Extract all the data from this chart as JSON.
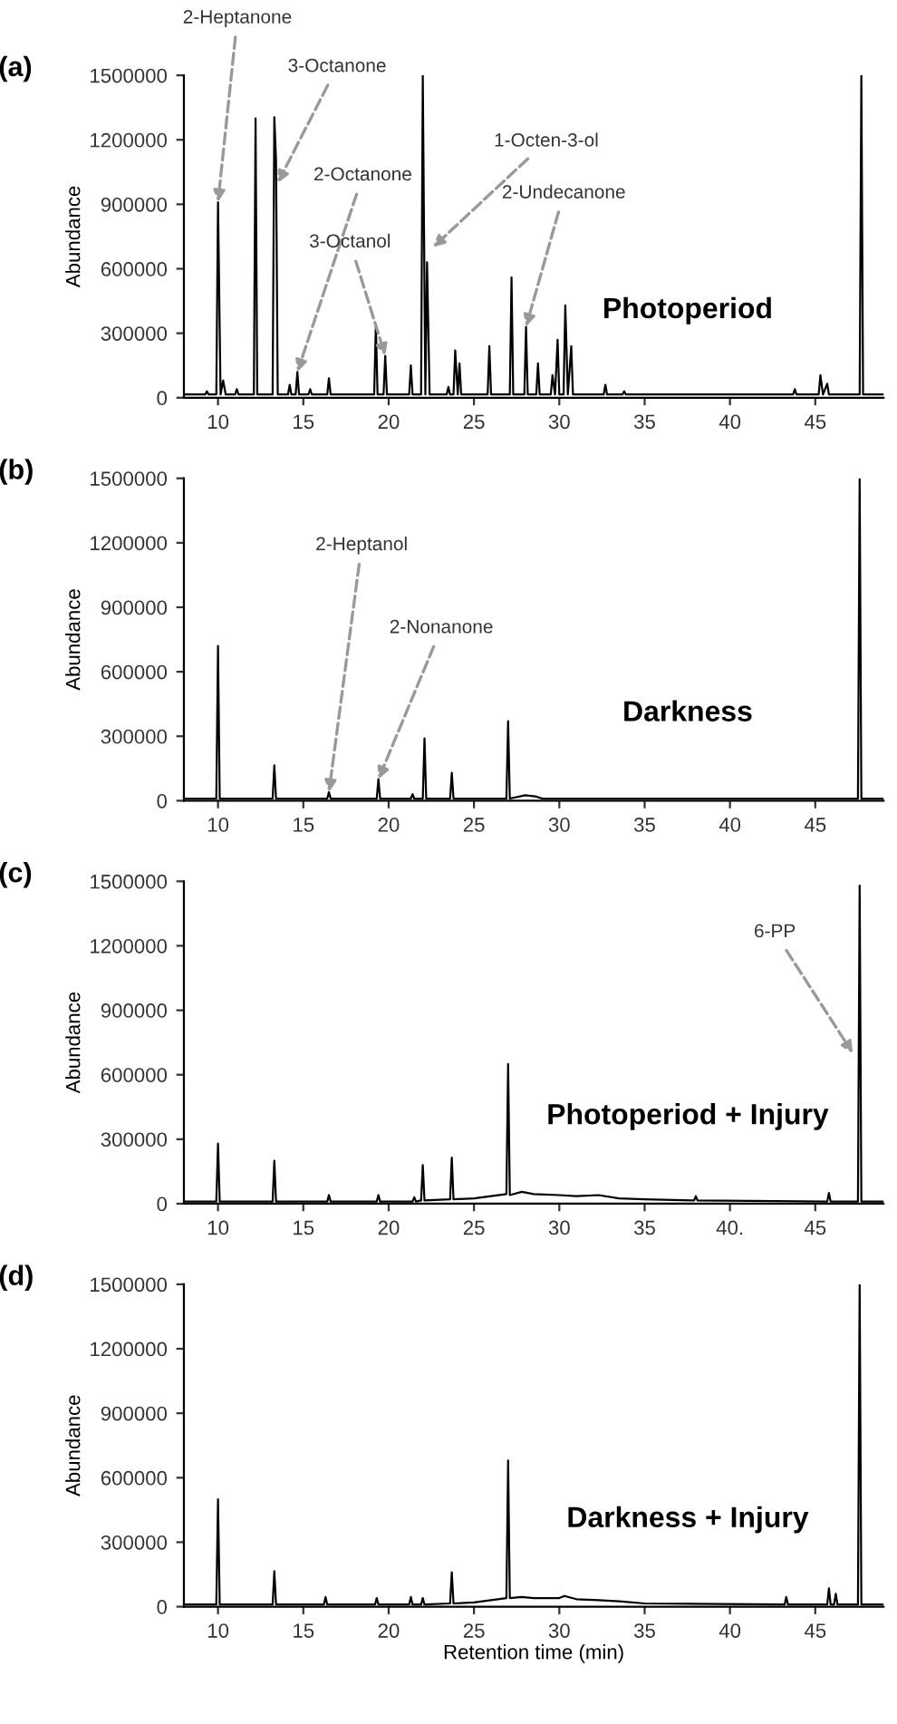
{
  "chart_data": [
    {
      "type": "line",
      "title": "(a)",
      "ylabel": "Abundance",
      "xlim": [
        8,
        49
      ],
      "xticks": [
        10,
        15,
        20,
        25,
        30,
        35,
        40,
        45
      ],
      "ylim": [
        0,
        1500000
      ],
      "yticks": [
        0,
        300000,
        600000,
        900000,
        1200000,
        1500000
      ],
      "grid": false,
      "marker": "none",
      "line_style": "solid",
      "series": [
        {
          "color": "#000000",
          "x": [
            8.1,
            9.25,
            9.35,
            9.45,
            9.9,
            10.0,
            10.15,
            10.3,
            10.45,
            11.0,
            11.1,
            11.2,
            12.1,
            12.2,
            12.3,
            13.2,
            13.3,
            13.4,
            13.5,
            14.1,
            14.2,
            14.3,
            14.55,
            14.65,
            14.75,
            15.3,
            15.4,
            15.5,
            16.4,
            16.5,
            16.6,
            19.15,
            19.25,
            19.35,
            19.7,
            19.8,
            19.9,
            21.2,
            21.3,
            21.4,
            21.9,
            22.0,
            22.15,
            22.25,
            22.4,
            23.4,
            23.5,
            23.6,
            23.8,
            23.9,
            24.05,
            24.15,
            24.25,
            25.8,
            25.9,
            26.0,
            27.1,
            27.2,
            27.3,
            27.95,
            28.05,
            28.15,
            28.65,
            28.75,
            28.85,
            29.5,
            29.6,
            29.75,
            29.9,
            30.0,
            30.25,
            30.35,
            30.5,
            30.7,
            30.8,
            32.6,
            32.7,
            32.8,
            33.7,
            33.8,
            33.9,
            43.7,
            43.8,
            43.9,
            45.2,
            45.3,
            45.45,
            45.7,
            45.8,
            47.6,
            47.7,
            47.8,
            49
          ],
          "values": [
            15000,
            15000,
            30000,
            15000,
            15000,
            910000,
            15000,
            80000,
            15000,
            15000,
            40000,
            15000,
            15000,
            1300000,
            15000,
            15000,
            1305000,
            1105000,
            15000,
            15000,
            60000,
            15000,
            15000,
            120000,
            15000,
            15000,
            40000,
            15000,
            15000,
            90000,
            15000,
            15000,
            340000,
            15000,
            15000,
            195000,
            15000,
            15000,
            150000,
            15000,
            15000,
            1500000,
            15000,
            630000,
            15000,
            15000,
            50000,
            15000,
            15000,
            220000,
            15000,
            160000,
            15000,
            15000,
            240000,
            15000,
            15000,
            560000,
            15000,
            15000,
            330000,
            15000,
            15000,
            160000,
            15000,
            15000,
            105000,
            15000,
            270000,
            15000,
            15000,
            430000,
            15000,
            240000,
            15000,
            15000,
            60000,
            15000,
            15000,
            30000,
            15000,
            15000,
            40000,
            15000,
            15000,
            105000,
            15000,
            65000,
            15000,
            15000,
            1500000,
            15000,
            15000
          ]
        }
      ],
      "annotations": [
        {
          "text": "2-Heptanone",
          "x": 10.0,
          "y": 910000
        },
        {
          "text": "3-Octanone",
          "x": 13.5,
          "y": 1000000
        },
        {
          "text": "2-Octanone",
          "x": 14.65,
          "y": 120000
        },
        {
          "text": "3-Octanol",
          "x": 19.8,
          "y": 195000
        },
        {
          "text": "1-Octen-3-ol",
          "x": 22.6,
          "y": 700000
        },
        {
          "text": "2-Undecanone",
          "x": 28.05,
          "y": 330000
        },
        "Photoperiod"
      ]
    },
    {
      "type": "line",
      "title": "(b)",
      "ylabel": "Abundance",
      "xlim": [
        8,
        49
      ],
      "xticks": [
        10,
        15,
        20,
        25,
        30,
        35,
        40,
        45
      ],
      "ylim": [
        0,
        1500000
      ],
      "yticks": [
        0,
        300000,
        600000,
        900000,
        1200000,
        1500000
      ],
      "grid": false,
      "marker": "none",
      "line_style": "solid",
      "series": [
        {
          "color": "#000000",
          "x": [
            8.1,
            9.9,
            10.0,
            10.1,
            13.2,
            13.3,
            13.4,
            16.4,
            16.5,
            16.6,
            19.3,
            19.4,
            19.5,
            21.3,
            21.4,
            21.5,
            22.0,
            22.1,
            22.2,
            23.6,
            23.7,
            23.8,
            26.9,
            27.0,
            27.1,
            28.0,
            28.6,
            29.0,
            47.5,
            47.6,
            47.7,
            49
          ],
          "values": [
            10000,
            10000,
            720000,
            10000,
            10000,
            165000,
            10000,
            10000,
            40000,
            10000,
            10000,
            100000,
            10000,
            10000,
            30000,
            10000,
            10000,
            290000,
            10000,
            10000,
            130000,
            10000,
            10000,
            370000,
            10000,
            25000,
            20000,
            10000,
            10000,
            1500000,
            10000,
            10000
          ]
        }
      ],
      "annotations": [
        {
          "text": "2-Heptanol",
          "x": 16.5,
          "y": 40000
        },
        {
          "text": "2-Nonanone",
          "x": 19.4,
          "y": 100000
        },
        "Darkness"
      ]
    },
    {
      "type": "line",
      "title": "(c)",
      "ylabel": "Abundance",
      "xlim": [
        8,
        49
      ],
      "xticks": [
        10,
        15,
        20,
        25,
        30,
        35,
        {
          "value": 40,
          "label": "40."
        },
        45
      ],
      "ylim": [
        0,
        1500000
      ],
      "yticks": [
        0,
        300000,
        600000,
        900000,
        1200000,
        1500000
      ],
      "grid": false,
      "marker": "none",
      "line_style": "solid",
      "series": [
        {
          "color": "#000000",
          "x": [
            8.1,
            9.9,
            10.0,
            10.1,
            13.2,
            13.3,
            13.4,
            16.4,
            16.5,
            16.6,
            19.3,
            19.4,
            19.5,
            21.4,
            21.5,
            21.6,
            21.9,
            22.0,
            22.1,
            23.6,
            23.7,
            23.8,
            25.0,
            26.0,
            26.9,
            27.0,
            27.1,
            27.8,
            28.5,
            30.0,
            31.0,
            32.3,
            33.5,
            35.0,
            37.9,
            38.0,
            38.1,
            45.7,
            45.8,
            45.9,
            47.5,
            47.6,
            47.7,
            49
          ],
          "values": [
            10000,
            10000,
            280000,
            10000,
            10000,
            200000,
            10000,
            10000,
            40000,
            10000,
            10000,
            40000,
            10000,
            10000,
            30000,
            10000,
            15000,
            180000,
            15000,
            20000,
            215000,
            20000,
            25000,
            35000,
            45000,
            650000,
            40000,
            55000,
            45000,
            40000,
            35000,
            40000,
            25000,
            20000,
            15000,
            35000,
            15000,
            10000,
            50000,
            10000,
            10000,
            1480000,
            10000,
            10000
          ]
        }
      ],
      "annotations": [
        {
          "text": "6-PP",
          "x": 47.2,
          "y": 700000
        },
        "Photoperiod + Injury"
      ]
    },
    {
      "type": "line",
      "title": "(d)",
      "ylabel": "Abundance",
      "xlabel": "Retention time (min)",
      "xlim": [
        8,
        49
      ],
      "xticks": [
        10,
        15,
        20,
        25,
        30,
        35,
        40,
        45
      ],
      "ylim": [
        0,
        1500000
      ],
      "yticks": [
        0,
        300000,
        600000,
        900000,
        1200000,
        1500000
      ],
      "grid": false,
      "marker": "none",
      "line_style": "solid",
      "series": [
        {
          "color": "#000000",
          "x": [
            8.1,
            9.9,
            10.0,
            10.1,
            13.2,
            13.3,
            13.4,
            16.2,
            16.3,
            16.4,
            19.2,
            19.3,
            19.4,
            21.2,
            21.3,
            21.4,
            21.9,
            22.0,
            22.1,
            23.6,
            23.7,
            23.8,
            25.0,
            26.0,
            26.9,
            27.0,
            27.1,
            27.8,
            28.5,
            30.0,
            30.3,
            31.0,
            32.3,
            33.5,
            35.0,
            43.2,
            43.3,
            43.4,
            45.7,
            45.8,
            45.9,
            46.1,
            46.2,
            46.3,
            47.5,
            47.6,
            47.7,
            49
          ],
          "values": [
            10000,
            10000,
            500000,
            10000,
            10000,
            165000,
            10000,
            10000,
            45000,
            10000,
            10000,
            40000,
            10000,
            10000,
            45000,
            10000,
            10000,
            40000,
            10000,
            15000,
            160000,
            15000,
            20000,
            30000,
            40000,
            680000,
            40000,
            45000,
            40000,
            40000,
            50000,
            35000,
            30000,
            25000,
            15000,
            10000,
            45000,
            10000,
            10000,
            85000,
            10000,
            10000,
            60000,
            10000,
            10000,
            1500000,
            10000,
            10000
          ]
        }
      ],
      "annotations": [
        "Darkness + Injury"
      ]
    }
  ]
}
